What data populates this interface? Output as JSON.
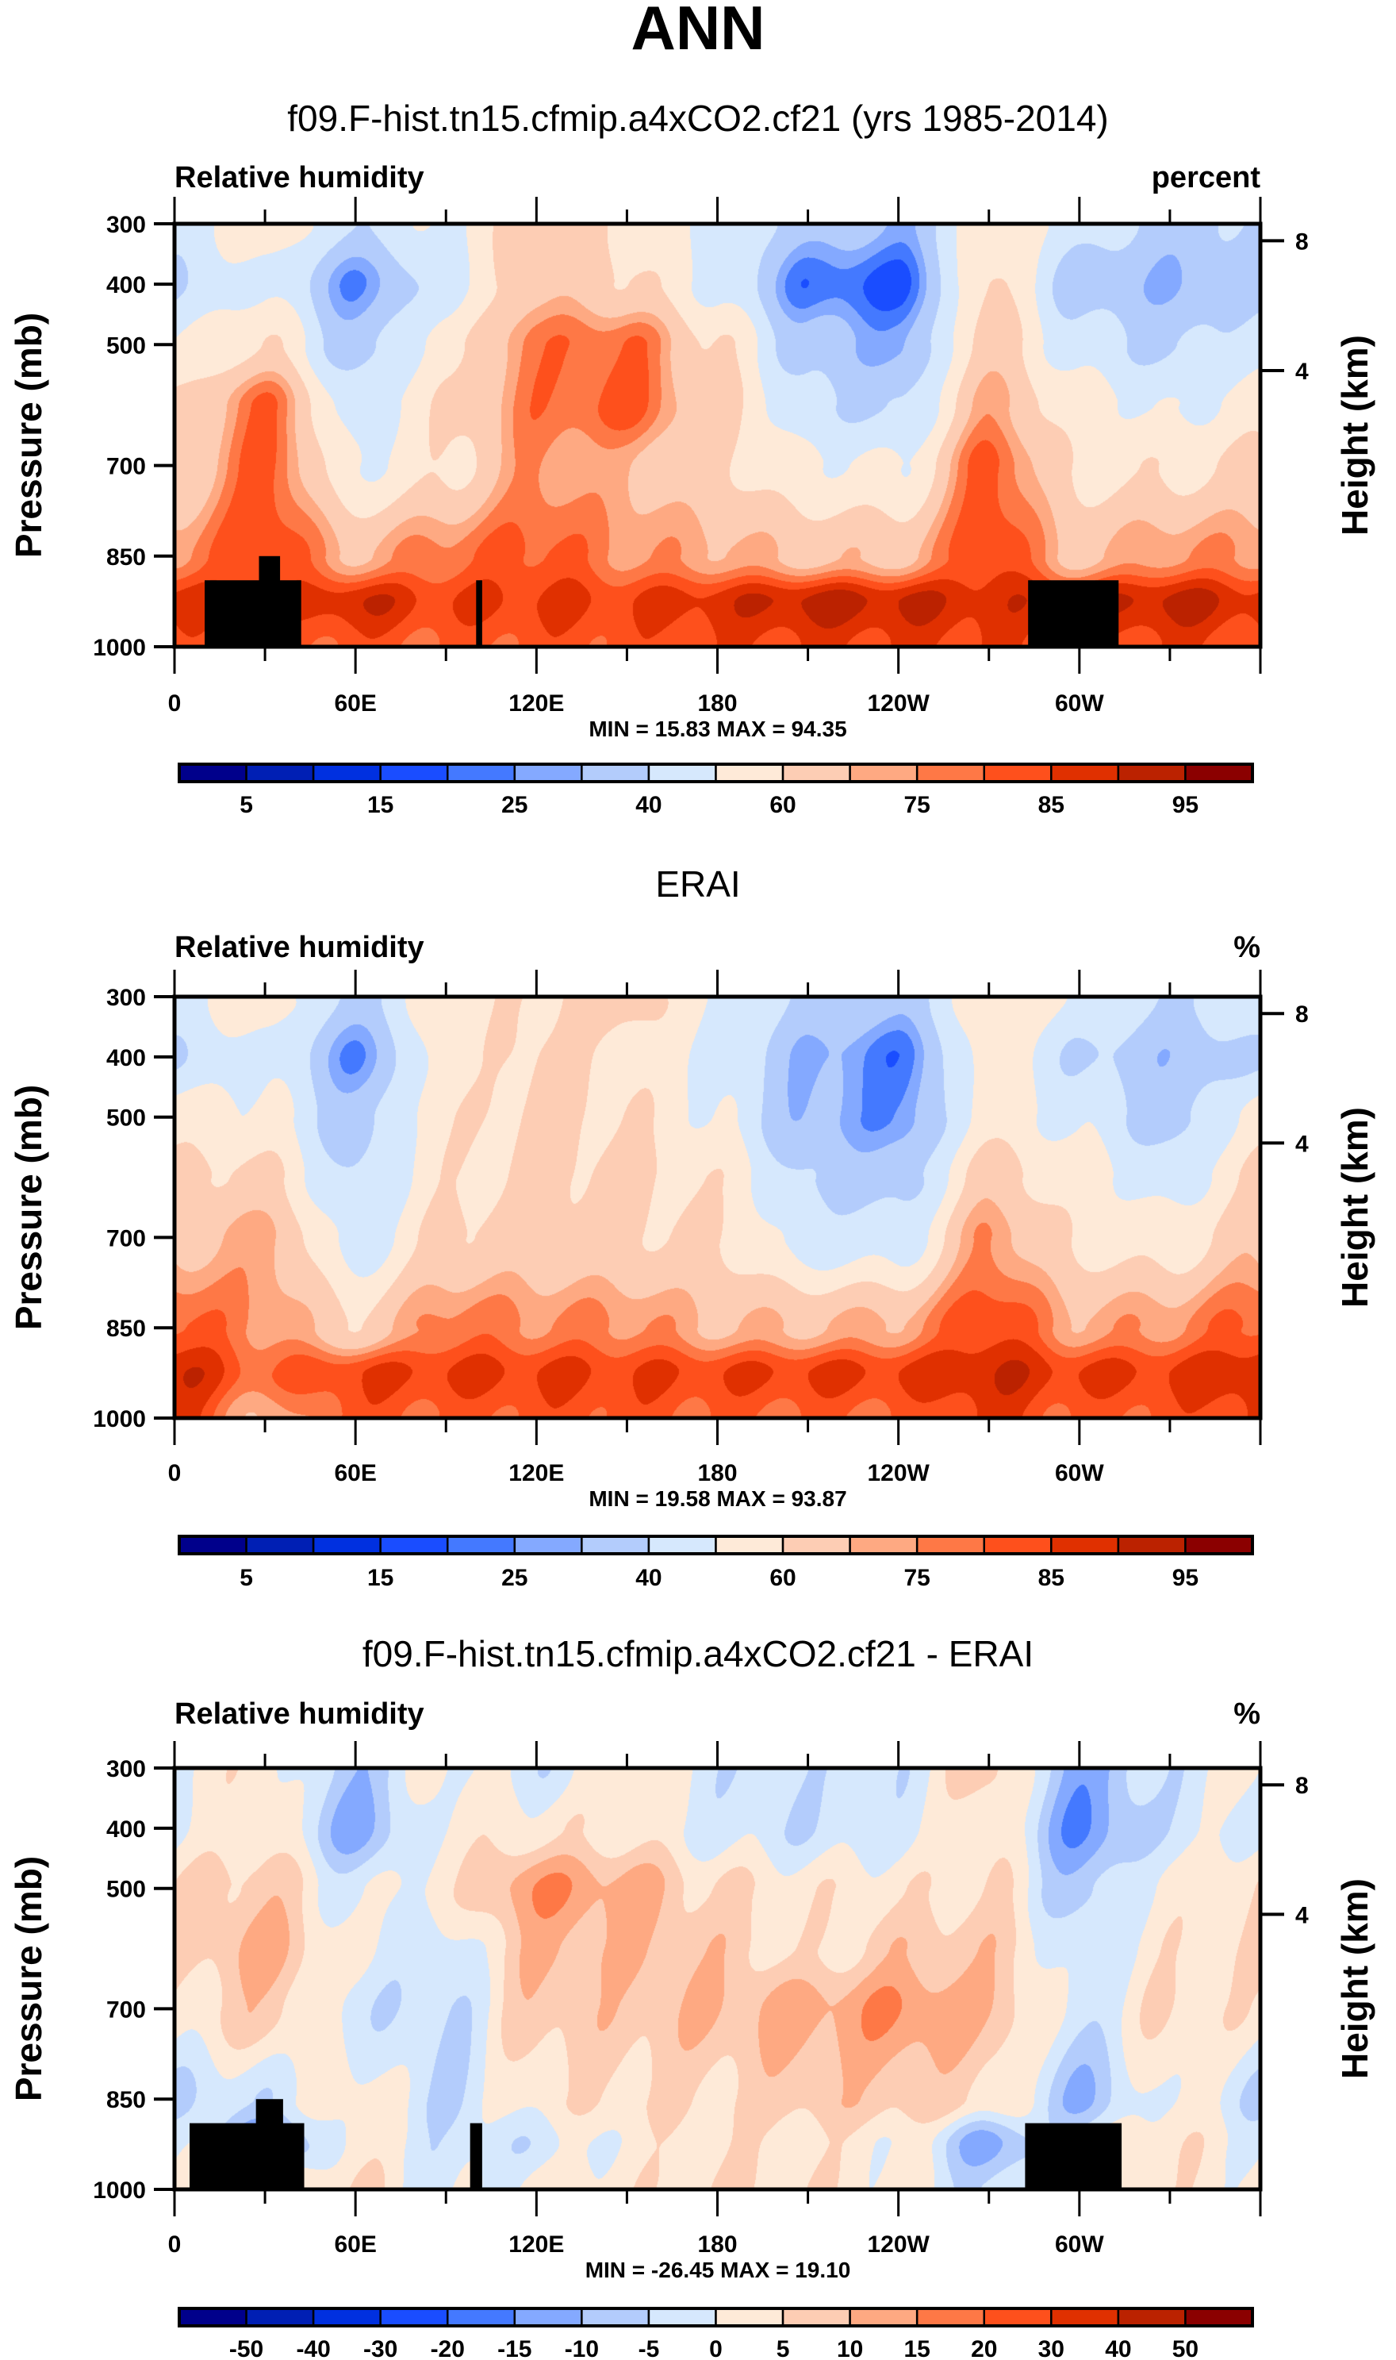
{
  "figure_title": "ANN",
  "chart_data": [
    {
      "type": "heatmap",
      "panel_title": "f09.F-hist.tn15.cfmip.a4xCO2.cf21 (yrs 1985-2014)",
      "left_label": "Relative humidity",
      "right_label": "percent",
      "xlabel": "",
      "ylabel": "Pressure (mb)",
      "y2label": "Height (km)",
      "x_range": [
        0,
        360
      ],
      "y_range": [
        300,
        1000
      ],
      "x_ticks": [
        {
          "v": 0,
          "label": "0"
        },
        {
          "v": 60,
          "label": "60E"
        },
        {
          "v": 120,
          "label": "120E"
        },
        {
          "v": 180,
          "label": "180"
        },
        {
          "v": 240,
          "label": "120W"
        },
        {
          "v": 300,
          "label": "60W"
        }
      ],
      "y_ticks": [
        300,
        400,
        500,
        700,
        850,
        1000
      ],
      "y2_ticks": [
        {
          "p": 328,
          "label": "8"
        },
        {
          "p": 543,
          "label": "4"
        }
      ],
      "min_max_text": "MIN =  15.83  MAX =  94.35",
      "levels": [
        5,
        10,
        15,
        20,
        25,
        30,
        40,
        50,
        60,
        70,
        75,
        80,
        85,
        90,
        95
      ],
      "colorbar_labels": [
        "5",
        "15",
        "25",
        "40",
        "60",
        "75",
        "85",
        "95"
      ],
      "lons": [
        0,
        30,
        60,
        90,
        120,
        150,
        180,
        210,
        240,
        270,
        300,
        330,
        360
      ],
      "pressures": [
        300,
        400,
        500,
        600,
        700,
        850,
        925,
        1000
      ],
      "values": [
        [
          45,
          55,
          42,
          50,
          65,
          58,
          45,
          35,
          30,
          55,
          45,
          35,
          40
        ],
        [
          40,
          50,
          25,
          45,
          68,
          62,
          48,
          22,
          18,
          62,
          35,
          30,
          38
        ],
        [
          50,
          60,
          35,
          55,
          78,
          80,
          60,
          35,
          28,
          65,
          45,
          38,
          45
        ],
        [
          60,
          80,
          45,
          60,
          78,
          82,
          65,
          42,
          38,
          72,
          55,
          48,
          55
        ],
        [
          62,
          82,
          50,
          58,
          75,
          70,
          62,
          52,
          50,
          82,
          58,
          58,
          62
        ],
        [
          75,
          85,
          70,
          78,
          82,
          75,
          72,
          68,
          68,
          85,
          68,
          75,
          75
        ],
        [
          88,
          82,
          90,
          85,
          86,
          85,
          88,
          92,
          91,
          88,
          88,
          92,
          88
        ],
        [
          82,
          80,
          82,
          80,
          82,
          82,
          84,
          85,
          85,
          85,
          82,
          85,
          82
        ]
      ],
      "terrain_mask": [
        {
          "lon_from": 10,
          "lon_to": 42,
          "p_top": 890
        },
        {
          "lon_from": 28,
          "lon_to": 35,
          "p_top": 850
        },
        {
          "lon_from": 100,
          "lon_to": 102,
          "p_top": 890
        },
        {
          "lon_from": 283,
          "lon_to": 313,
          "p_top": 890
        }
      ]
    },
    {
      "type": "heatmap",
      "panel_title": "ERAI",
      "left_label": "Relative humidity",
      "right_label": "%",
      "xlabel": "",
      "ylabel": "Pressure (mb)",
      "y2label": "Height (km)",
      "x_range": [
        0,
        360
      ],
      "y_range": [
        300,
        1000
      ],
      "x_ticks": [
        {
          "v": 0,
          "label": "0"
        },
        {
          "v": 60,
          "label": "60E"
        },
        {
          "v": 120,
          "label": "120E"
        },
        {
          "v": 180,
          "label": "180"
        },
        {
          "v": 240,
          "label": "120W"
        },
        {
          "v": 300,
          "label": "60W"
        }
      ],
      "y_ticks": [
        300,
        400,
        500,
        700,
        850,
        1000
      ],
      "y2_ticks": [
        {
          "p": 328,
          "label": "8"
        },
        {
          "p": 543,
          "label": "4"
        }
      ],
      "min_max_text": "MIN =  19.58  MAX =  93.87",
      "levels": [
        5,
        10,
        15,
        20,
        25,
        30,
        40,
        50,
        60,
        70,
        75,
        80,
        85,
        90,
        95
      ],
      "colorbar_labels": [
        "5",
        "15",
        "25",
        "40",
        "60",
        "75",
        "85",
        "95"
      ],
      "lons": [
        0,
        30,
        60,
        90,
        120,
        150,
        180,
        210,
        240,
        270,
        300,
        330,
        360
      ],
      "pressures": [
        300,
        400,
        500,
        600,
        700,
        850,
        925,
        1000
      ],
      "values": [
        [
          48,
          55,
          38,
          55,
          60,
          65,
          50,
          38,
          35,
          55,
          50,
          40,
          48
        ],
        [
          40,
          50,
          25,
          55,
          62,
          58,
          48,
          30,
          22,
          55,
          40,
          32,
          40
        ],
        [
          55,
          52,
          35,
          58,
          62,
          60,
          50,
          30,
          25,
          55,
          48,
          35,
          55
        ],
        [
          62,
          62,
          38,
          58,
          62,
          62,
          58,
          38,
          35,
          65,
          55,
          45,
          62
        ],
        [
          68,
          72,
          45,
          62,
          64,
          62,
          60,
          45,
          45,
          75,
          58,
          55,
          68
        ],
        [
          82,
          75,
          62,
          78,
          76,
          76,
          70,
          70,
          72,
          85,
          72,
          75,
          82
        ],
        [
          90,
          80,
          85,
          86,
          86,
          85,
          85,
          86,
          86,
          90,
          86,
          86,
          90
        ],
        [
          86,
          70,
          82,
          80,
          82,
          82,
          80,
          80,
          80,
          86,
          80,
          82,
          86
        ]
      ],
      "terrain_mask": []
    },
    {
      "type": "heatmap",
      "panel_title": "f09.F-hist.tn15.cfmip.a4xCO2.cf21 - ERAI",
      "left_label": "Relative humidity",
      "right_label": "%",
      "xlabel": "",
      "ylabel": "Pressure (mb)",
      "y2label": "Height (km)",
      "x_range": [
        0,
        360
      ],
      "y_range": [
        300,
        1000
      ],
      "x_ticks": [
        {
          "v": 0,
          "label": "0"
        },
        {
          "v": 60,
          "label": "60E"
        },
        {
          "v": 120,
          "label": "120E"
        },
        {
          "v": 180,
          "label": "180"
        },
        {
          "v": 240,
          "label": "120W"
        },
        {
          "v": 300,
          "label": "60W"
        }
      ],
      "y_ticks": [
        300,
        400,
        500,
        700,
        850,
        1000
      ],
      "y2_ticks": [
        {
          "p": 328,
          "label": "8"
        },
        {
          "p": 543,
          "label": "4"
        }
      ],
      "min_max_text": "MIN = -26.45  MAX =  19.10",
      "levels": [
        -50,
        -40,
        -30,
        -20,
        -15,
        -10,
        -5,
        0,
        5,
        10,
        15,
        20,
        30,
        40,
        50
      ],
      "colorbar_labels": [
        "-50",
        "-40",
        "-30",
        "-20",
        "-15",
        "-10",
        "-5",
        "0",
        "5",
        "10",
        "15",
        "20",
        "30",
        "40",
        "50"
      ],
      "lons": [
        0,
        30,
        60,
        90,
        120,
        150,
        180,
        210,
        240,
        270,
        300,
        330,
        360
      ],
      "pressures": [
        300,
        400,
        500,
        600,
        700,
        850,
        925,
        1000
      ],
      "values": [
        [
          2,
          3,
          -8,
          2,
          -3,
          3,
          -3,
          -3,
          -3,
          8,
          -12,
          -3,
          2
        ],
        [
          0,
          3,
          -12,
          2,
          3,
          3,
          -2,
          -4,
          -2,
          4,
          -15,
          -3,
          0
        ],
        [
          5,
          8,
          -2,
          3,
          15,
          12,
          5,
          3,
          3,
          5,
          -8,
          2,
          5
        ],
        [
          5,
          12,
          0,
          -3,
          10,
          10,
          8,
          3,
          8,
          8,
          -3,
          3,
          5
        ],
        [
          3,
          8,
          -3,
          -5,
          8,
          8,
          10,
          12,
          15,
          10,
          -3,
          5,
          3
        ],
        [
          -5,
          -3,
          3,
          -5,
          3,
          5,
          5,
          8,
          8,
          5,
          -10,
          2,
          -5
        ],
        [
          0,
          -15,
          3,
          -3,
          -3,
          2,
          4,
          3,
          2,
          -12,
          0,
          4,
          0
        ],
        [
          2,
          5,
          5,
          -2,
          2,
          3,
          5,
          4,
          2,
          -5,
          3,
          3,
          2
        ]
      ],
      "terrain_mask": [
        {
          "lon_from": 5,
          "lon_to": 43,
          "p_top": 890
        },
        {
          "lon_from": 27,
          "lon_to": 36,
          "p_top": 850
        },
        {
          "lon_from": 98,
          "lon_to": 102,
          "p_top": 890
        },
        {
          "lon_from": 282,
          "lon_to": 314,
          "p_top": 890
        }
      ]
    }
  ],
  "colormap": [
    "#00008b",
    "#001fb4",
    "#0030e0",
    "#1a4dff",
    "#4479ff",
    "#84a9ff",
    "#b3ccfc",
    "#d6e8fd",
    "#feead8",
    "#fdcdb4",
    "#fea982",
    "#fe7846",
    "#fe501c",
    "#e03000",
    "#bb2200",
    "#8b0000"
  ]
}
